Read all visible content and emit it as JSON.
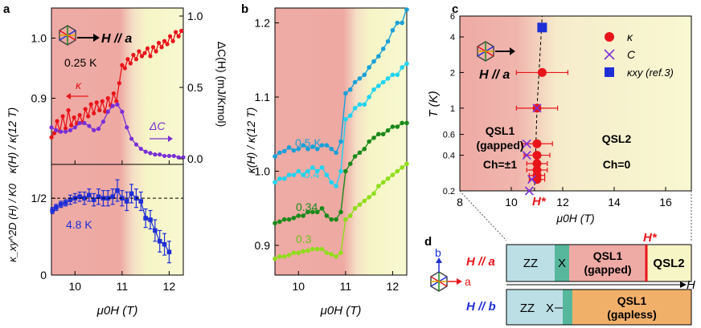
{
  "colors": {
    "red": "#e8141a",
    "purple": "#7a2fd6",
    "blue": "#1f2fd6",
    "cyan": "#22d3f0",
    "green_dark": "#1a8a1a",
    "green_light": "#8fdd1a",
    "bg_red": "#eeaaa4",
    "bg_yellow": "#f6f5c6",
    "zz_box": "#bcdfe6",
    "x_box": "#56b79c",
    "qsl1_gapped_box": "#eeaaa4",
    "qsl2_box": "#f6f5c6",
    "qsl1_gapless_box": "#f1b06a"
  },
  "panels": {
    "a": {
      "label": "a",
      "inset_field": "H // a",
      "temp_label": "0.25 K",
      "kappa_arrow_label": "κ",
      "dc_arrow_label": "ΔC",
      "ylabel_left": "κ(H) / κ(12 T)",
      "ylabel_right": "ΔC(H) (mJ/Kmol)",
      "lower_ylabel": "κ_xy^2D (H) / K0",
      "lower_temp": "4.8 K",
      "xlabel": "μ0H (T)",
      "xticks": [
        "10",
        "11",
        "12"
      ],
      "upper_yticks_left": [
        "0.9",
        "1.0"
      ],
      "upper_yticks_right": [
        "0.0",
        "0.5",
        "1.0"
      ],
      "lower_yticks": [
        "0",
        "1/2"
      ]
    },
    "b": {
      "label": "b",
      "ylabel": "κ(H) / κ(12 T)",
      "xlabel": "μ0H (T)",
      "xticks": [
        "10",
        "11",
        "12"
      ],
      "yticks": [
        "0.9",
        "1.0",
        "1.1",
        "1.2"
      ],
      "curve_labels": [
        "0.5 K",
        "0.4",
        "0.34",
        "0.3"
      ]
    },
    "c": {
      "label": "c",
      "inset_field": "H // a",
      "ylabel": "T (K)",
      "xlabel": "μ0H (T)",
      "xticks": [
        "8",
        "10",
        "12",
        "14",
        "16"
      ],
      "yticks": [
        "0.2",
        "0.4",
        "0.6",
        "1",
        "2",
        "4",
        "6"
      ],
      "legend": [
        "κ",
        "C",
        "κxy (ref.3)"
      ],
      "qsl1_lines": [
        "QSL1",
        "(gapped)",
        "Ch=±1"
      ],
      "qsl2_lines": [
        "QSL2",
        "Ch=0"
      ],
      "hstar": "H*"
    },
    "d": {
      "label": "d",
      "axis_b": "b",
      "axis_a": "a",
      "axis_H": "H",
      "row1_label": "H // a",
      "row2_label": "H // b",
      "hstar": "H*",
      "row1": [
        "ZZ",
        "X",
        "QSL1",
        "(gapped)",
        "QSL2"
      ],
      "row2": [
        "ZZ",
        "X",
        "QSL1",
        "(gapless)"
      ]
    }
  },
  "chart_data": [
    {
      "type": "line",
      "panel": "a-upper",
      "xlim": [
        9.5,
        12.3
      ],
      "ylim_left": [
        0.79,
        1.05
      ],
      "ylim_right": [
        0.0,
        1.0
      ],
      "series": [
        {
          "name": "κ",
          "axis": "left",
          "x": [
            9.5,
            9.56,
            9.62,
            9.68,
            9.74,
            9.8,
            9.86,
            9.92,
            9.98,
            10.04,
            10.1,
            10.16,
            10.22,
            10.28,
            10.34,
            10.4,
            10.46,
            10.52,
            10.58,
            10.64,
            10.7,
            10.76,
            10.82,
            10.88,
            10.94,
            11.0,
            11.06,
            11.12,
            11.18,
            11.24,
            11.3,
            11.36,
            11.42,
            11.48,
            11.54,
            11.6,
            11.66,
            11.72,
            11.78,
            11.84,
            11.9,
            11.96,
            12.02,
            12.08,
            12.14,
            12.2,
            12.26
          ],
          "y": [
            0.835,
            0.842,
            0.862,
            0.845,
            0.87,
            0.85,
            0.88,
            0.855,
            0.868,
            0.858,
            0.872,
            0.86,
            0.882,
            0.87,
            0.89,
            0.875,
            0.893,
            0.88,
            0.895,
            0.878,
            0.9,
            0.888,
            0.908,
            0.895,
            0.925,
            0.955,
            0.95,
            0.965,
            0.958,
            0.972,
            0.965,
            0.978,
            0.97,
            0.975,
            0.983,
            0.97,
            0.985,
            0.978,
            0.992,
            0.985,
            0.995,
            0.99,
            1.003,
            0.995,
            1.01,
            1.003,
            1.012
          ]
        },
        {
          "name": "ΔC",
          "axis": "right",
          "x": [
            9.5,
            9.6,
            9.7,
            9.8,
            9.9,
            10.0,
            10.1,
            10.2,
            10.3,
            10.4,
            10.5,
            10.6,
            10.7,
            10.8,
            10.9,
            11.0,
            11.1,
            11.2,
            11.3,
            11.4,
            11.5,
            11.6,
            11.7,
            11.8,
            11.9,
            12.0,
            12.1,
            12.2,
            12.3
          ],
          "y": [
            0.22,
            0.2,
            0.19,
            0.19,
            0.2,
            0.22,
            0.25,
            0.25,
            0.23,
            0.2,
            0.21,
            0.26,
            0.33,
            0.37,
            0.38,
            0.33,
            0.22,
            0.14,
            0.1,
            0.07,
            0.05,
            0.04,
            0.03,
            0.03,
            0.02,
            0.02,
            0.02,
            0.01,
            0.01
          ]
        }
      ]
    },
    {
      "type": "scatter",
      "panel": "a-lower",
      "xlim": [
        9.5,
        12.3
      ],
      "ylim": [
        0.0,
        0.72
      ],
      "reference_line": 0.5,
      "series": [
        {
          "name": "4.8 K",
          "x": [
            9.52,
            9.6,
            9.7,
            9.8,
            9.9,
            10.0,
            10.1,
            10.2,
            10.3,
            10.4,
            10.5,
            10.6,
            10.7,
            10.8,
            10.9,
            11.0,
            11.1,
            11.2,
            11.3,
            11.4,
            11.5,
            11.6,
            11.7,
            11.8,
            11.9,
            12.0
          ],
          "y": [
            0.42,
            0.44,
            0.46,
            0.47,
            0.49,
            0.5,
            0.51,
            0.5,
            0.52,
            0.49,
            0.51,
            0.5,
            0.5,
            0.51,
            0.55,
            0.5,
            0.48,
            0.53,
            0.5,
            0.48,
            0.37,
            0.36,
            0.29,
            0.22,
            0.2,
            0.15
          ],
          "err": [
            0.02,
            0.02,
            0.02,
            0.02,
            0.03,
            0.03,
            0.03,
            0.04,
            0.04,
            0.04,
            0.05,
            0.05,
            0.05,
            0.05,
            0.07,
            0.05,
            0.06,
            0.06,
            0.06,
            0.06,
            0.06,
            0.06,
            0.07,
            0.07,
            0.07,
            0.07
          ]
        }
      ]
    },
    {
      "type": "line",
      "panel": "b",
      "xlim": [
        9.5,
        12.3
      ],
      "ylim": [
        0.86,
        1.22
      ],
      "series": [
        {
          "name": "0.5 K",
          "x": [
            9.5,
            9.6,
            9.7,
            9.8,
            9.9,
            10.0,
            10.1,
            10.2,
            10.3,
            10.4,
            10.5,
            10.6,
            10.7,
            10.8,
            10.9,
            11.0,
            11.1,
            11.2,
            11.3,
            11.4,
            11.5,
            11.6,
            11.7,
            11.8,
            11.9,
            12.0,
            12.1,
            12.2,
            12.3
          ],
          "y": [
            1.02,
            1.025,
            1.027,
            1.032,
            1.028,
            1.03,
            1.035,
            1.03,
            1.033,
            1.03,
            1.035,
            1.035,
            1.03,
            1.025,
            1.04,
            1.105,
            1.11,
            1.12,
            1.125,
            1.13,
            1.14,
            1.148,
            1.155,
            1.165,
            1.175,
            1.19,
            1.2,
            1.2,
            1.22
          ]
        },
        {
          "name": "0.4",
          "x": [
            9.5,
            9.6,
            9.7,
            9.8,
            9.9,
            10.0,
            10.1,
            10.2,
            10.3,
            10.4,
            10.5,
            10.6,
            10.7,
            10.8,
            10.9,
            11.0,
            11.1,
            11.2,
            11.3,
            11.4,
            11.5,
            11.6,
            11.7,
            11.8,
            11.9,
            12.0,
            12.1,
            12.2,
            12.3
          ],
          "y": [
            0.985,
            0.99,
            0.99,
            0.995,
            0.995,
            1.0,
            0.995,
            1.0,
            1.005,
            1.0,
            1.005,
            0.995,
            0.985,
            0.98,
            1.0,
            1.07,
            1.075,
            1.085,
            1.09,
            1.09,
            1.1,
            1.11,
            1.115,
            1.12,
            1.125,
            1.13,
            1.13,
            1.14,
            1.145
          ]
        },
        {
          "name": "0.34",
          "x": [
            9.5,
            9.6,
            9.7,
            9.8,
            9.9,
            10.0,
            10.1,
            10.2,
            10.3,
            10.4,
            10.5,
            10.6,
            10.7,
            10.8,
            10.9,
            11.0,
            11.1,
            11.2,
            11.3,
            11.4,
            11.5,
            11.6,
            11.7,
            11.8,
            11.9,
            12.0,
            12.1,
            12.2,
            12.3
          ],
          "y": [
            0.93,
            0.932,
            0.935,
            0.935,
            0.937,
            0.94,
            0.94,
            0.945,
            0.945,
            0.945,
            0.95,
            0.94,
            0.935,
            0.935,
            0.945,
            1.0,
            1.01,
            1.02,
            1.025,
            1.03,
            1.04,
            1.045,
            1.05,
            1.05,
            1.055,
            1.06,
            1.06,
            1.065,
            1.065
          ]
        },
        {
          "name": "0.3",
          "x": [
            9.5,
            9.6,
            9.7,
            9.8,
            9.9,
            10.0,
            10.1,
            10.2,
            10.3,
            10.4,
            10.5,
            10.6,
            10.7,
            10.8,
            10.9,
            11.0,
            11.1,
            11.2,
            11.3,
            11.4,
            11.5,
            11.6,
            11.7,
            11.8,
            11.9,
            12.0,
            12.1,
            12.2,
            12.3
          ],
          "y": [
            0.882,
            0.885,
            0.885,
            0.887,
            0.89,
            0.89,
            0.892,
            0.893,
            0.895,
            0.895,
            0.895,
            0.89,
            0.888,
            0.885,
            0.89,
            0.935,
            0.94,
            0.95,
            0.955,
            0.96,
            0.965,
            0.97,
            0.98,
            0.985,
            0.99,
            0.995,
            1.0,
            1.005,
            1.01
          ]
        }
      ]
    },
    {
      "type": "scatter",
      "panel": "c",
      "xlim": [
        8,
        17
      ],
      "ylim": [
        0.2,
        6
      ],
      "yscale": "log",
      "series": [
        {
          "name": "κ",
          "points": [
            [
              11.2,
              2.0,
              1.0
            ],
            [
              11.0,
              1.0,
              0.8
            ],
            [
              11.0,
              0.5,
              0.6
            ],
            [
              11.0,
              0.4,
              0.5
            ],
            [
              11.0,
              0.34,
              0.4
            ],
            [
              11.0,
              0.3,
              0.4
            ],
            [
              11.0,
              0.27,
              0.3
            ],
            [
              11.0,
              0.25,
              0.3
            ]
          ]
        },
        {
          "name": "C",
          "points": [
            [
              11.0,
              1.0
            ],
            [
              10.6,
              0.5
            ],
            [
              10.6,
              0.4
            ],
            [
              10.8,
              0.25
            ],
            [
              10.7,
              0.2
            ]
          ]
        },
        {
          "name": "κxy (ref.3)",
          "points": [
            [
              11.2,
              4.8
            ]
          ]
        }
      ]
    }
  ]
}
